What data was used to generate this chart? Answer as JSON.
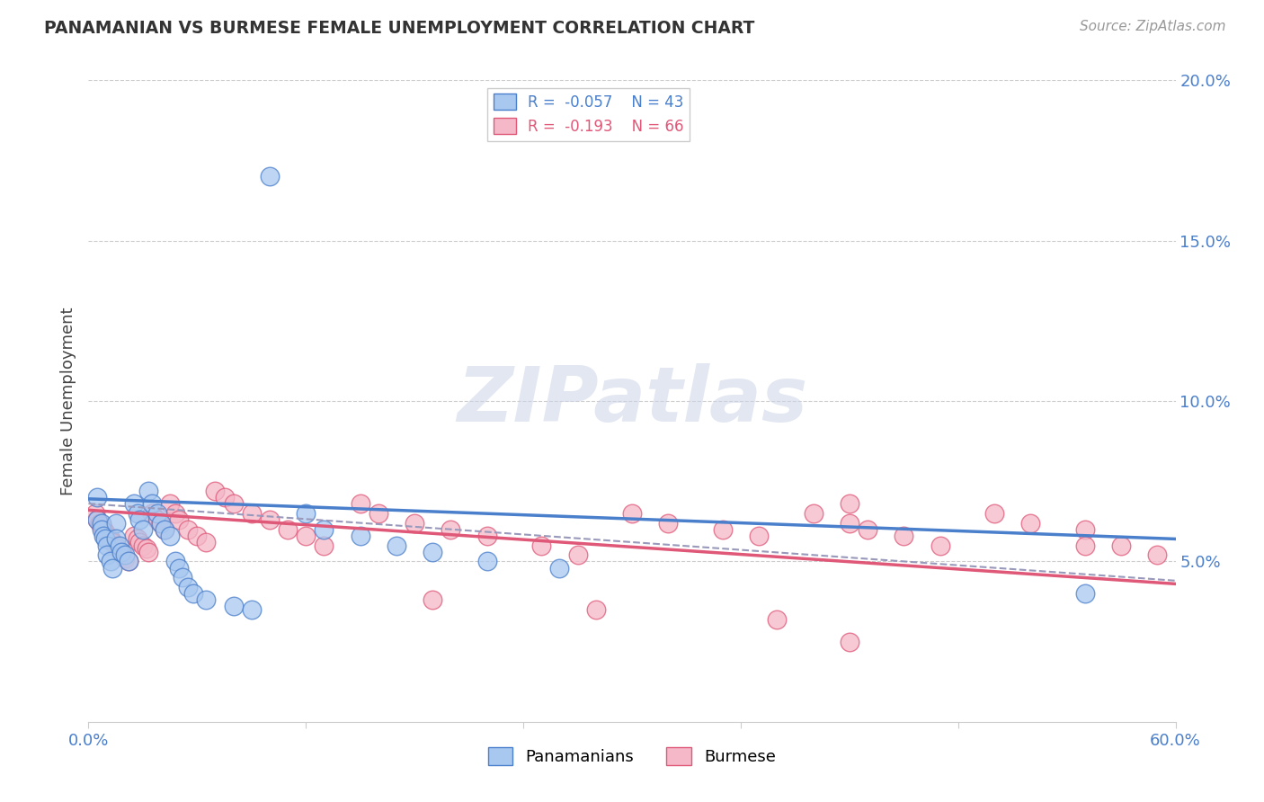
{
  "title": "PANAMANIAN VS BURMESE FEMALE UNEMPLOYMENT CORRELATION CHART",
  "source_text": "Source: ZipAtlas.com",
  "ylabel": "Female Unemployment",
  "blue_color": "#a8c8f0",
  "pink_color": "#f4b8c8",
  "blue_line_color": "#4a7fcc",
  "pink_line_color": "#e05878",
  "gray_dash_color": "#9999bb",
  "xlim": [
    0.0,
    0.6
  ],
  "ylim": [
    0.0,
    0.2
  ],
  "yticks": [
    0.05,
    0.1,
    0.15,
    0.2
  ],
  "ytick_labels": [
    "5.0%",
    "10.0%",
    "15.0%",
    "20.0%"
  ],
  "xtick_show": [
    "0.0%",
    "60.0%"
  ],
  "legend_blue_label": "R =  -0.057    N = 43",
  "legend_pink_label": "R =  -0.193    N = 66",
  "watermark_text": "ZIPatlas",
  "blue_trend": [
    0.0695,
    0.057
  ],
  "pink_trend": [
    0.066,
    0.043
  ],
  "gray_trend": [
    0.068,
    0.044
  ],
  "pan_x": [
    0.005,
    0.005,
    0.007,
    0.007,
    0.008,
    0.009,
    0.01,
    0.01,
    0.012,
    0.013,
    0.015,
    0.015,
    0.017,
    0.018,
    0.02,
    0.022,
    0.025,
    0.027,
    0.028,
    0.03,
    0.033,
    0.035,
    0.038,
    0.04,
    0.042,
    0.045,
    0.048,
    0.05,
    0.052,
    0.055,
    0.058,
    0.065,
    0.08,
    0.09,
    0.1,
    0.12,
    0.13,
    0.15,
    0.17,
    0.19,
    0.22,
    0.26,
    0.55
  ],
  "pan_y": [
    0.07,
    0.063,
    0.062,
    0.06,
    0.058,
    0.057,
    0.055,
    0.052,
    0.05,
    0.048,
    0.062,
    0.057,
    0.055,
    0.053,
    0.052,
    0.05,
    0.068,
    0.065,
    0.063,
    0.06,
    0.072,
    0.068,
    0.065,
    0.062,
    0.06,
    0.058,
    0.05,
    0.048,
    0.045,
    0.042,
    0.04,
    0.038,
    0.036,
    0.035,
    0.17,
    0.065,
    0.06,
    0.058,
    0.055,
    0.053,
    0.05,
    0.048,
    0.04
  ],
  "bur_x": [
    0.004,
    0.005,
    0.006,
    0.007,
    0.008,
    0.009,
    0.01,
    0.012,
    0.013,
    0.015,
    0.016,
    0.018,
    0.019,
    0.02,
    0.022,
    0.025,
    0.027,
    0.028,
    0.03,
    0.032,
    0.033,
    0.035,
    0.038,
    0.04,
    0.042,
    0.045,
    0.048,
    0.05,
    0.055,
    0.06,
    0.065,
    0.07,
    0.075,
    0.08,
    0.09,
    0.1,
    0.11,
    0.12,
    0.13,
    0.15,
    0.16,
    0.18,
    0.2,
    0.22,
    0.25,
    0.27,
    0.3,
    0.32,
    0.35,
    0.37,
    0.4,
    0.42,
    0.43,
    0.45,
    0.47,
    0.5,
    0.52,
    0.55,
    0.57,
    0.59,
    0.19,
    0.28,
    0.38,
    0.42,
    0.55,
    0.42
  ],
  "bur_y": [
    0.065,
    0.063,
    0.062,
    0.061,
    0.06,
    0.059,
    0.058,
    0.057,
    0.056,
    0.055,
    0.054,
    0.053,
    0.052,
    0.051,
    0.05,
    0.058,
    0.057,
    0.056,
    0.055,
    0.054,
    0.053,
    0.065,
    0.063,
    0.062,
    0.06,
    0.068,
    0.065,
    0.063,
    0.06,
    0.058,
    0.056,
    0.072,
    0.07,
    0.068,
    0.065,
    0.063,
    0.06,
    0.058,
    0.055,
    0.068,
    0.065,
    0.062,
    0.06,
    0.058,
    0.055,
    0.052,
    0.065,
    0.062,
    0.06,
    0.058,
    0.065,
    0.062,
    0.06,
    0.058,
    0.055,
    0.065,
    0.062,
    0.06,
    0.055,
    0.052,
    0.038,
    0.035,
    0.032,
    0.025,
    0.055,
    0.068
  ]
}
